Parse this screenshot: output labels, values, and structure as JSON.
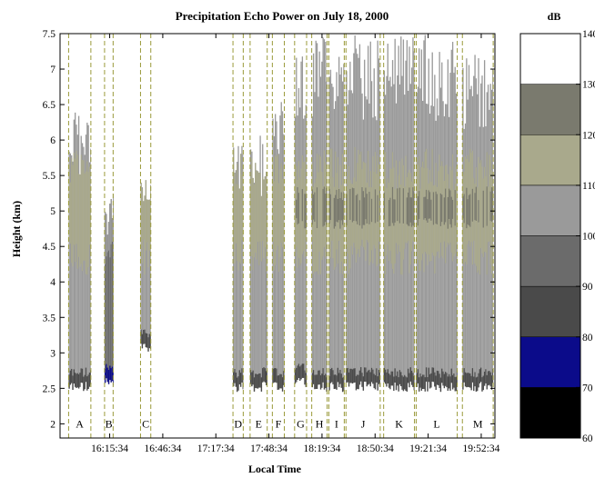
{
  "chart_data": {
    "type": "heatmap",
    "title": "Precipitation Echo Power on July 18, 2000",
    "xlabel": "Local Time",
    "ylabel": "Height (km)",
    "ylim": [
      1.8,
      7.5
    ],
    "yticks": [
      "2",
      "2.5",
      "3",
      "3.5",
      "4",
      "4.5",
      "5",
      "5.5",
      "6",
      "6.5",
      "7",
      "7.5"
    ],
    "xticks": [
      "16:15:34",
      "16:46:34",
      "17:17:34",
      "17:48:34",
      "18:19:34",
      "18:50:34",
      "19:21:34",
      "19:52:34"
    ],
    "xtick_values_min": [
      975,
      1006,
      1037,
      1068,
      1099,
      1130,
      1161,
      1192
    ],
    "xlim_min": [
      946,
      1200
    ],
    "segments": [
      "A",
      "B",
      "C",
      "D",
      "E",
      "F",
      "G",
      "H",
      "I",
      "J",
      "K",
      "L",
      "M"
    ],
    "segment_bounds_min": [
      [
        951,
        964
      ],
      [
        972,
        977
      ],
      [
        993,
        999
      ],
      [
        1047,
        1053
      ],
      [
        1057,
        1067
      ],
      [
        1070,
        1077
      ],
      [
        1083,
        1090
      ],
      [
        1093,
        1102
      ],
      [
        1103,
        1112
      ],
      [
        1113,
        1133
      ],
      [
        1135,
        1153
      ],
      [
        1154,
        1178
      ],
      [
        1181,
        1199
      ]
    ],
    "colorbar": {
      "label": "dB",
      "ticks": [
        "60",
        "70",
        "80",
        "90",
        "100",
        "110",
        "120",
        "130",
        "140"
      ],
      "bins": [
        {
          "range": [
            60,
            70
          ],
          "color": "#000000"
        },
        {
          "range": [
            70,
            80
          ],
          "color": "#0b0b8a"
        },
        {
          "range": [
            80,
            90
          ],
          "color": "#4a4a4a"
        },
        {
          "range": [
            90,
            100
          ],
          "color": "#6b6b6b"
        },
        {
          "range": [
            100,
            110
          ],
          "color": "#9a9a9a"
        },
        {
          "range": [
            110,
            120
          ],
          "color": "#a9a98c"
        },
        {
          "range": [
            120,
            130
          ],
          "color": "#7a7a6e"
        },
        {
          "range": [
            130,
            140
          ],
          "color": "#ffffff"
        }
      ]
    },
    "echo_regions": [
      {
        "segment": "A",
        "bottom_km": 2.45,
        "top_km": 6.5,
        "dominant_db": [
          100,
          120
        ]
      },
      {
        "segment": "B",
        "bottom_km": 2.5,
        "top_km": 5.3,
        "dominant_db": [
          90,
          100
        ]
      },
      {
        "segment": "C",
        "bottom_km": 3.0,
        "top_km": 5.6,
        "dominant_db": [
          100,
          120
        ]
      },
      {
        "segment": "D",
        "bottom_km": 2.45,
        "top_km": 6.0,
        "dominant_db": [
          100,
          110
        ]
      },
      {
        "segment": "E",
        "bottom_km": 2.45,
        "top_km": 6.1,
        "dominant_db": [
          100,
          120
        ]
      },
      {
        "segment": "F",
        "bottom_km": 2.45,
        "top_km": 6.6,
        "dominant_db": [
          100,
          120
        ]
      },
      {
        "segment": "G",
        "bottom_km": 2.5,
        "top_km": 7.3,
        "dominant_db": [
          100,
          130
        ]
      },
      {
        "segment": "H",
        "bottom_km": 2.45,
        "top_km": 7.5,
        "dominant_db": [
          100,
          130
        ]
      },
      {
        "segment": "I",
        "bottom_km": 2.45,
        "top_km": 7.5,
        "dominant_db": [
          100,
          130
        ]
      },
      {
        "segment": "J",
        "bottom_km": 2.45,
        "top_km": 7.5,
        "dominant_db": [
          100,
          130
        ]
      },
      {
        "segment": "K",
        "bottom_km": 2.45,
        "top_km": 7.5,
        "dominant_db": [
          100,
          130
        ]
      },
      {
        "segment": "L",
        "bottom_km": 2.45,
        "top_km": 7.5,
        "dominant_db": [
          100,
          130
        ]
      },
      {
        "segment": "M",
        "bottom_km": 2.45,
        "top_km": 7.3,
        "dominant_db": [
          100,
          130
        ]
      }
    ],
    "grid": false,
    "legend": "colorbar-right"
  }
}
